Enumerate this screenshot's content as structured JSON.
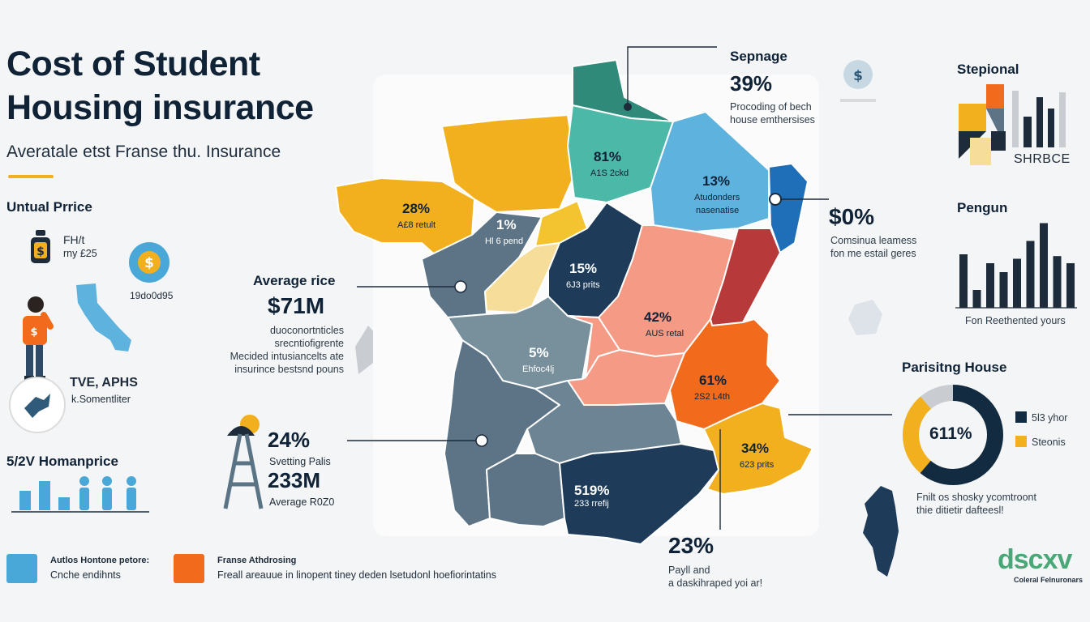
{
  "header": {
    "title_line1": "Cost of Student",
    "title_line2": "Housing insurance",
    "subtitle": "Averatale etst Franse thu. Insurance"
  },
  "left_panel": {
    "annual_price": {
      "heading": "Untual Prrice",
      "line1": "FH/t",
      "line2": "rny £25",
      "coin_value": "19do0d95"
    },
    "person": {
      "title": "TVE, APHS",
      "sub": "k.Somentliter"
    },
    "home_price": {
      "heading": "5/2V Homanprice"
    }
  },
  "callouts": {
    "average_price": {
      "heading": "Average rice",
      "value": "$71M",
      "lines": [
        "duoconortnticles",
        "srecntiofigrente",
        "Mecided intusiancelts ate",
        "insurince bestsnd pouns"
      ]
    },
    "left_stat": {
      "pct": "24%",
      "label": "Svetting Palis",
      "value": "233M",
      "sub": "Average R0Z0"
    },
    "top_note": {
      "heading": "Sepnage",
      "value": "39%",
      "line1": "Procoding of bech",
      "line2": "house emthersises"
    },
    "right_note": {
      "value": "$0%",
      "line1": "Comsinua leamess",
      "line2": "fon me estail geres"
    },
    "bottom_note": {
      "value": "23%",
      "line1": "Payll and",
      "line2": "a daskihraped yoi ar!"
    }
  },
  "map_regions": [
    {
      "pct": "28%",
      "sub": "A£8 retult"
    },
    {
      "pct": "81%",
      "sub": "A1S 2ckd"
    },
    {
      "pct": "13%",
      "sub": "Atudonders",
      "sub2": "nasenatise"
    },
    {
      "pct": "1%",
      "sub": "Hl 6 pend"
    },
    {
      "pct": "15%",
      "sub": "6J3 prits"
    },
    {
      "pct": "42%",
      "sub": "AUS retal"
    },
    {
      "pct": "5%",
      "sub": "Ehfoc4lj"
    },
    {
      "pct": "61%",
      "sub": "2S2 L4th"
    },
    {
      "pct": "34%",
      "sub": "623 prits"
    },
    {
      "pct": "519%",
      "sub": "233 rrefij"
    }
  ],
  "right_panel": {
    "stepional": {
      "heading": "Stepional",
      "tile_text": "SHRBCE"
    },
    "pengun": {
      "heading": "Pengun",
      "caption": "Fon Reethented yours",
      "values": [
        60,
        20,
        50,
        40,
        55,
        75,
        95,
        58,
        50
      ]
    },
    "donut": {
      "heading": "Parisitng House",
      "center_value": "611%",
      "legend": [
        {
          "label": "5l3 yhor",
          "color": "#132b41"
        },
        {
          "label": "Steonis",
          "color": "#f2b01e"
        }
      ],
      "line1": "Fnilt os shosky ycomtroont",
      "line2": "thie ditietir dafteesl!"
    }
  },
  "legend": {
    "item1_title": "Autlos Hontone petore:",
    "item1_sub": "Cnche endihnts",
    "item2_title": "Franse Athdrosing",
    "item2_sub": "Freall areauue in linopent tiney deden lsetudonl hoefiorintatins",
    "color1": "#4aa8d8",
    "color2": "#f26a1b"
  },
  "brand": {
    "logo": "dscxv",
    "tagline": "Coleral Felnuronars"
  }
}
